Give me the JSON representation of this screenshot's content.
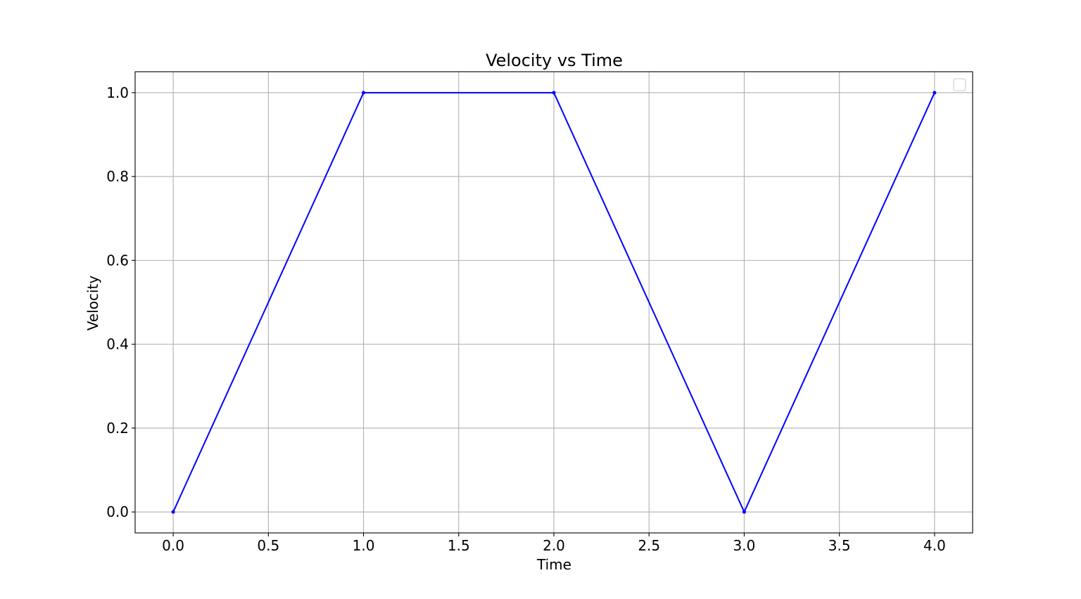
{
  "chart_data": {
    "type": "line",
    "title": "Velocity vs Time",
    "xlabel": "Time",
    "ylabel": "Velocity",
    "xlim": [
      -0.2,
      4.2
    ],
    "ylim": [
      -0.05,
      1.05
    ],
    "xticks": [
      0.0,
      0.5,
      1.0,
      1.5,
      2.0,
      2.5,
      3.0,
      3.5,
      4.0
    ],
    "xtick_labels": [
      "0.0",
      "0.5",
      "1.0",
      "1.5",
      "2.0",
      "2.5",
      "3.0",
      "3.5",
      "4.0"
    ],
    "yticks": [
      0.0,
      0.2,
      0.4,
      0.6,
      0.8,
      1.0
    ],
    "ytick_labels": [
      "0.0",
      "0.2",
      "0.4",
      "0.6",
      "0.8",
      "1.0"
    ],
    "grid": true,
    "legend": "top-right (empty)",
    "series": [
      {
        "color": "#0000ff",
        "x": [
          0,
          1,
          2,
          3,
          4
        ],
        "y": [
          0,
          1,
          1,
          0,
          1
        ]
      }
    ]
  }
}
